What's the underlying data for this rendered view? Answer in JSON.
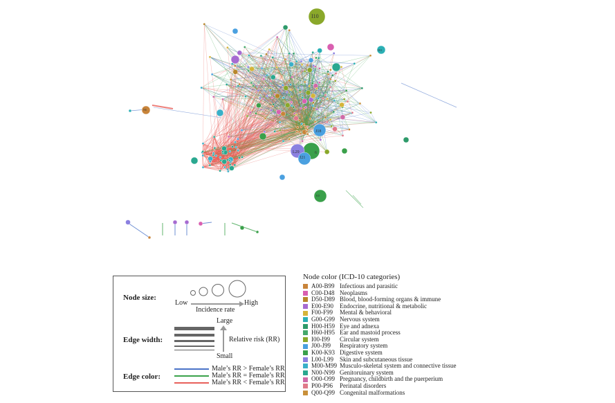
{
  "legend": {
    "node_size_label": "Node size:",
    "low": "Low",
    "high": "High",
    "incidence_rate": "Incidence rate",
    "edge_width_label": "Edge width:",
    "large": "Large",
    "small": "Small",
    "relative_risk": "Relative risk (RR)",
    "edge_color_label": "Edge color:",
    "edge_colors": [
      {
        "text": "Male’s RR > Female’s RR",
        "color": "#4a73c8"
      },
      {
        "text": "Male’s RR = Female’s RR",
        "color": "#3aa24a"
      },
      {
        "text": "Male’s RR < Female’s RR",
        "color": "#e8605a"
      }
    ]
  },
  "categories_title": "Node color (ICD-10 categories)",
  "categories": [
    {
      "code": "A00-B99",
      "name": "Infectious and parasitic",
      "color": "#c8843a"
    },
    {
      "code": "C00-D48",
      "name": "Neoplasms",
      "color": "#d95fb0"
    },
    {
      "code": "D50-D89",
      "name": "Blood, blood-forming organs & immune",
      "color": "#b8862a"
    },
    {
      "code": "E00-E90",
      "name": "Endocrine, nutritional & metabolic",
      "color": "#a66bd1"
    },
    {
      "code": "F00-F99",
      "name": "Mental & behavioral",
      "color": "#d4b43a"
    },
    {
      "code": "G00-G99",
      "name": "Nervous system",
      "color": "#2bb0b5"
    },
    {
      "code": "H00-H59",
      "name": "Eye and adnexa",
      "color": "#2e9a6a"
    },
    {
      "code": "H60-H95",
      "name": "Ear and mastoid process",
      "color": "#45a86b"
    },
    {
      "code": "I00-I99",
      "name": "Circular system",
      "color": "#8aa82a"
    },
    {
      "code": "J00-J99",
      "name": "Respiratory system",
      "color": "#4aa0e0"
    },
    {
      "code": "K00-K93",
      "name": "Digestive system",
      "color": "#3aa04a"
    },
    {
      "code": "L00-L99",
      "name": "Skin and subcutaneous tissue",
      "color": "#8b80e0"
    },
    {
      "code": "M00-M99",
      "name": "Musculo-skeletal system and connective tissue",
      "color": "#3ab0c8"
    },
    {
      "code": "N00-N99",
      "name": "Genitoruinary system",
      "color": "#2aa890"
    },
    {
      "code": "O00-O99",
      "name": "Pregnancy, childbirth and the puerperium",
      "color": "#d06aa8"
    },
    {
      "code": "P00-P96",
      "name": "Perinatal disorders",
      "color": "#e07a8a"
    },
    {
      "code": "Q00-Q99",
      "name": "Congenital malformations",
      "color": "#c8903a"
    }
  ],
  "node_labels": {
    "i10": "I10",
    "l29": "L29",
    "j21": "J21",
    "n6": "6",
    "j18": "J18",
    "k0": "K0",
    "n6x": "N6",
    "h11": "H11"
  }
}
